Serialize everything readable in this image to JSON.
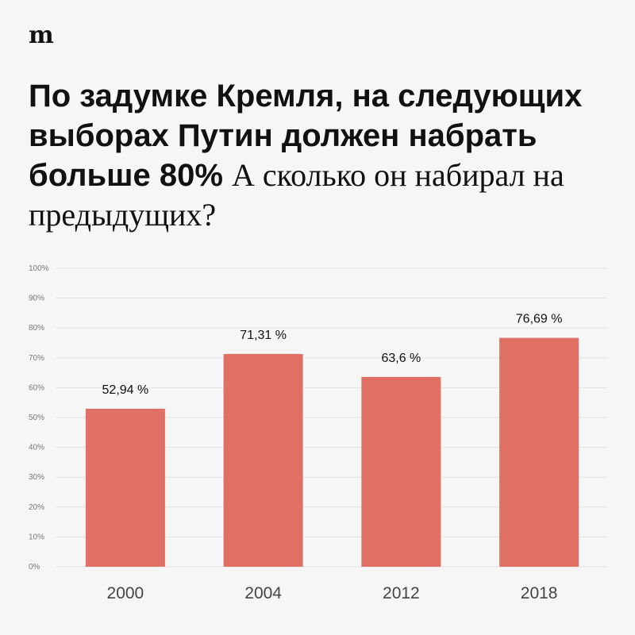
{
  "brand": {
    "logo_text": "m"
  },
  "headline": {
    "bold_part": "По задумке Кремля, на следующих выборах Путин должен набрать больше 80%",
    "regular_part": "А сколько он набирал на предыдущих?"
  },
  "colors": {
    "bar": "#e07064",
    "background": "#f6f6f6"
  },
  "chart_data": {
    "type": "bar",
    "categories": [
      "2000",
      "2004",
      "2012",
      "2018"
    ],
    "values": [
      52.94,
      71.31,
      63.6,
      76.69
    ],
    "data_labels": [
      "52,94 %",
      "71,31 %",
      "63,6 %",
      "76,69 %"
    ],
    "y_ticks": [
      "0%",
      "10%",
      "20%",
      "30%",
      "40%",
      "50%",
      "60%",
      "70%",
      "80%",
      "90%",
      "100%"
    ],
    "ylim": [
      0,
      100
    ],
    "grid": true,
    "title": "",
    "xlabel": "",
    "ylabel": ""
  }
}
